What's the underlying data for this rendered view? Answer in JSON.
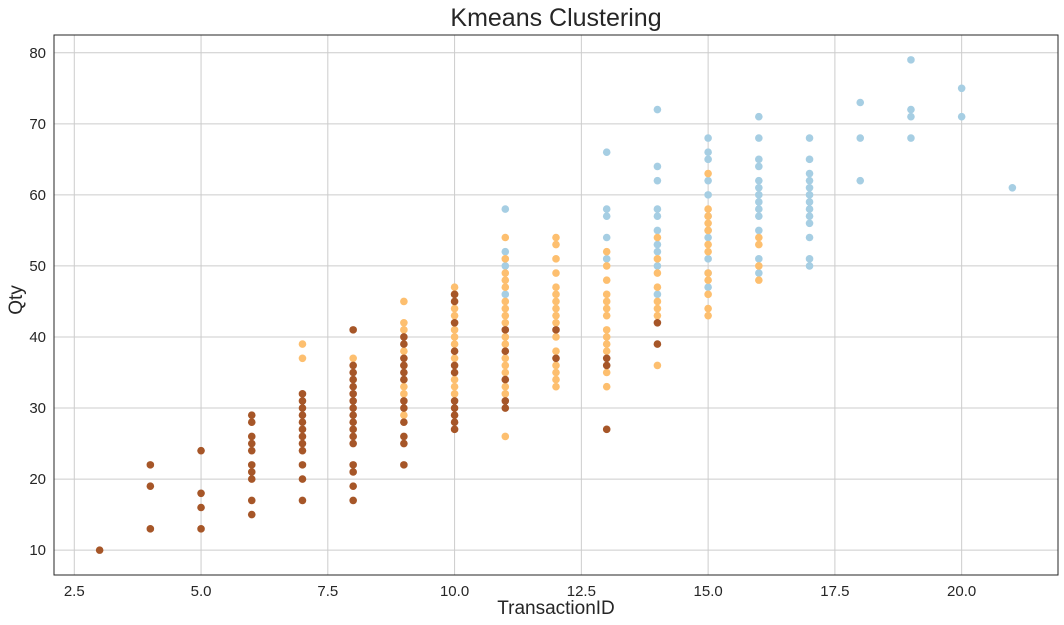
{
  "chart_data": {
    "type": "scatter",
    "title": "Kmeans Clustering",
    "xlabel": "TransactionID",
    "ylabel": "Qty",
    "xlim": [
      2.1,
      21.9
    ],
    "ylim": [
      6.5,
      82.5
    ],
    "xticks": [
      2.5,
      5.0,
      7.5,
      10.0,
      12.5,
      15.0,
      17.5,
      20.0
    ],
    "xtick_labels": [
      "2.5",
      "5.0",
      "7.5",
      "10.0",
      "12.5",
      "15.0",
      "17.5",
      "20.0"
    ],
    "yticks": [
      10,
      20,
      30,
      40,
      50,
      60,
      70,
      80
    ],
    "ytick_labels": [
      "10",
      "20",
      "30",
      "40",
      "50",
      "60",
      "70",
      "80"
    ],
    "grid": true,
    "series": [
      {
        "color": "#a6cee3",
        "points": [
          [
            11,
            58
          ],
          [
            11,
            52
          ],
          [
            11,
            50
          ],
          [
            11,
            46
          ],
          [
            13,
            66
          ],
          [
            13,
            58
          ],
          [
            13,
            57
          ],
          [
            13,
            54
          ],
          [
            13,
            51
          ],
          [
            14,
            72
          ],
          [
            14,
            64
          ],
          [
            14,
            62
          ],
          [
            14,
            58
          ],
          [
            14,
            57
          ],
          [
            14,
            55
          ],
          [
            14,
            53
          ],
          [
            14,
            52
          ],
          [
            14,
            50
          ],
          [
            14,
            46
          ],
          [
            15,
            68
          ],
          [
            15,
            66
          ],
          [
            15,
            65
          ],
          [
            15,
            62
          ],
          [
            15,
            60
          ],
          [
            15,
            57
          ],
          [
            15,
            55
          ],
          [
            15,
            54
          ],
          [
            15,
            51
          ],
          [
            15,
            49
          ],
          [
            15,
            47
          ],
          [
            16,
            71
          ],
          [
            16,
            68
          ],
          [
            16,
            65
          ],
          [
            16,
            64
          ],
          [
            16,
            62
          ],
          [
            16,
            61
          ],
          [
            16,
            60
          ],
          [
            16,
            59
          ],
          [
            16,
            58
          ],
          [
            16,
            57
          ],
          [
            16,
            55
          ],
          [
            16,
            51
          ],
          [
            16,
            49
          ],
          [
            17,
            68
          ],
          [
            17,
            65
          ],
          [
            17,
            63
          ],
          [
            17,
            62
          ],
          [
            17,
            61
          ],
          [
            17,
            60
          ],
          [
            17,
            59
          ],
          [
            17,
            58
          ],
          [
            17,
            57
          ],
          [
            17,
            56
          ],
          [
            17,
            54
          ],
          [
            17,
            51
          ],
          [
            17,
            50
          ],
          [
            18,
            73
          ],
          [
            18,
            68
          ],
          [
            18,
            62
          ],
          [
            19,
            79
          ],
          [
            19,
            72
          ],
          [
            19,
            71
          ],
          [
            19,
            68
          ],
          [
            20,
            75
          ],
          [
            20,
            71
          ],
          [
            21,
            61
          ]
        ]
      },
      {
        "color": "#fdbf6f",
        "points": [
          [
            7,
            39
          ],
          [
            7,
            37
          ],
          [
            8,
            37
          ],
          [
            9,
            45
          ],
          [
            9,
            42
          ],
          [
            9,
            41
          ],
          [
            9,
            38
          ],
          [
            9,
            36
          ],
          [
            9,
            33
          ],
          [
            9,
            32
          ],
          [
            9,
            29
          ],
          [
            10,
            47
          ],
          [
            10,
            46
          ],
          [
            10,
            44
          ],
          [
            10,
            43
          ],
          [
            10,
            42
          ],
          [
            10,
            41
          ],
          [
            10,
            40
          ],
          [
            10,
            39
          ],
          [
            10,
            37
          ],
          [
            10,
            34
          ],
          [
            10,
            33
          ],
          [
            10,
            32
          ],
          [
            11,
            54
          ],
          [
            11,
            51
          ],
          [
            11,
            49
          ],
          [
            11,
            48
          ],
          [
            11,
            47
          ],
          [
            11,
            45
          ],
          [
            11,
            44
          ],
          [
            11,
            43
          ],
          [
            11,
            42
          ],
          [
            11,
            40
          ],
          [
            11,
            39
          ],
          [
            11,
            37
          ],
          [
            11,
            36
          ],
          [
            11,
            35
          ],
          [
            11,
            33
          ],
          [
            11,
            32
          ],
          [
            11,
            26
          ],
          [
            12,
            54
          ],
          [
            12,
            53
          ],
          [
            12,
            51
          ],
          [
            12,
            49
          ],
          [
            12,
            47
          ],
          [
            12,
            46
          ],
          [
            12,
            45
          ],
          [
            12,
            44
          ],
          [
            12,
            43
          ],
          [
            12,
            42
          ],
          [
            12,
            40
          ],
          [
            12,
            38
          ],
          [
            12,
            36
          ],
          [
            12,
            35
          ],
          [
            12,
            34
          ],
          [
            12,
            33
          ],
          [
            13,
            52
          ],
          [
            13,
            50
          ],
          [
            13,
            48
          ],
          [
            13,
            46
          ],
          [
            13,
            45
          ],
          [
            13,
            44
          ],
          [
            13,
            43
          ],
          [
            13,
            41
          ],
          [
            13,
            40
          ],
          [
            13,
            39
          ],
          [
            13,
            38
          ],
          [
            13,
            35
          ],
          [
            13,
            33
          ],
          [
            14,
            54
          ],
          [
            14,
            51
          ],
          [
            14,
            49
          ],
          [
            14,
            47
          ],
          [
            14,
            45
          ],
          [
            14,
            44
          ],
          [
            14,
            43
          ],
          [
            14,
            36
          ],
          [
            15,
            63
          ],
          [
            15,
            58
          ],
          [
            15,
            57
          ],
          [
            15,
            56
          ],
          [
            15,
            55
          ],
          [
            15,
            53
          ],
          [
            15,
            52
          ],
          [
            15,
            49
          ],
          [
            15,
            48
          ],
          [
            15,
            46
          ],
          [
            15,
            44
          ],
          [
            15,
            43
          ],
          [
            16,
            54
          ],
          [
            16,
            53
          ],
          [
            16,
            50
          ],
          [
            16,
            48
          ]
        ]
      },
      {
        "color": "#a65628",
        "points": [
          [
            3,
            10
          ],
          [
            4,
            22
          ],
          [
            4,
            19
          ],
          [
            4,
            13
          ],
          [
            5,
            24
          ],
          [
            5,
            18
          ],
          [
            5,
            16
          ],
          [
            5,
            13
          ],
          [
            6,
            29
          ],
          [
            6,
            28
          ],
          [
            6,
            26
          ],
          [
            6,
            25
          ],
          [
            6,
            24
          ],
          [
            6,
            22
          ],
          [
            6,
            21
          ],
          [
            6,
            20
          ],
          [
            6,
            17
          ],
          [
            6,
            15
          ],
          [
            7,
            32
          ],
          [
            7,
            31
          ],
          [
            7,
            30
          ],
          [
            7,
            29
          ],
          [
            7,
            28
          ],
          [
            7,
            27
          ],
          [
            7,
            26
          ],
          [
            7,
            25
          ],
          [
            7,
            24
          ],
          [
            7,
            22
          ],
          [
            7,
            20
          ],
          [
            7,
            17
          ],
          [
            8,
            41
          ],
          [
            8,
            36
          ],
          [
            8,
            35
          ],
          [
            8,
            34
          ],
          [
            8,
            33
          ],
          [
            8,
            32
          ],
          [
            8,
            31
          ],
          [
            8,
            30
          ],
          [
            8,
            29
          ],
          [
            8,
            28
          ],
          [
            8,
            27
          ],
          [
            8,
            26
          ],
          [
            8,
            25
          ],
          [
            8,
            22
          ],
          [
            8,
            21
          ],
          [
            8,
            19
          ],
          [
            8,
            17
          ],
          [
            9,
            40
          ],
          [
            9,
            39
          ],
          [
            9,
            37
          ],
          [
            9,
            36
          ],
          [
            9,
            35
          ],
          [
            9,
            34
          ],
          [
            9,
            31
          ],
          [
            9,
            30
          ],
          [
            9,
            28
          ],
          [
            9,
            26
          ],
          [
            9,
            25
          ],
          [
            9,
            22
          ],
          [
            10,
            46
          ],
          [
            10,
            45
          ],
          [
            10,
            42
          ],
          [
            10,
            38
          ],
          [
            10,
            36
          ],
          [
            10,
            35
          ],
          [
            10,
            31
          ],
          [
            10,
            30
          ],
          [
            10,
            29
          ],
          [
            10,
            28
          ],
          [
            10,
            27
          ],
          [
            11,
            41
          ],
          [
            11,
            38
          ],
          [
            11,
            34
          ],
          [
            11,
            31
          ],
          [
            11,
            30
          ],
          [
            12,
            41
          ],
          [
            12,
            37
          ],
          [
            13,
            37
          ],
          [
            13,
            36
          ],
          [
            13,
            27
          ],
          [
            14,
            42
          ],
          [
            14,
            39
          ]
        ]
      }
    ]
  }
}
